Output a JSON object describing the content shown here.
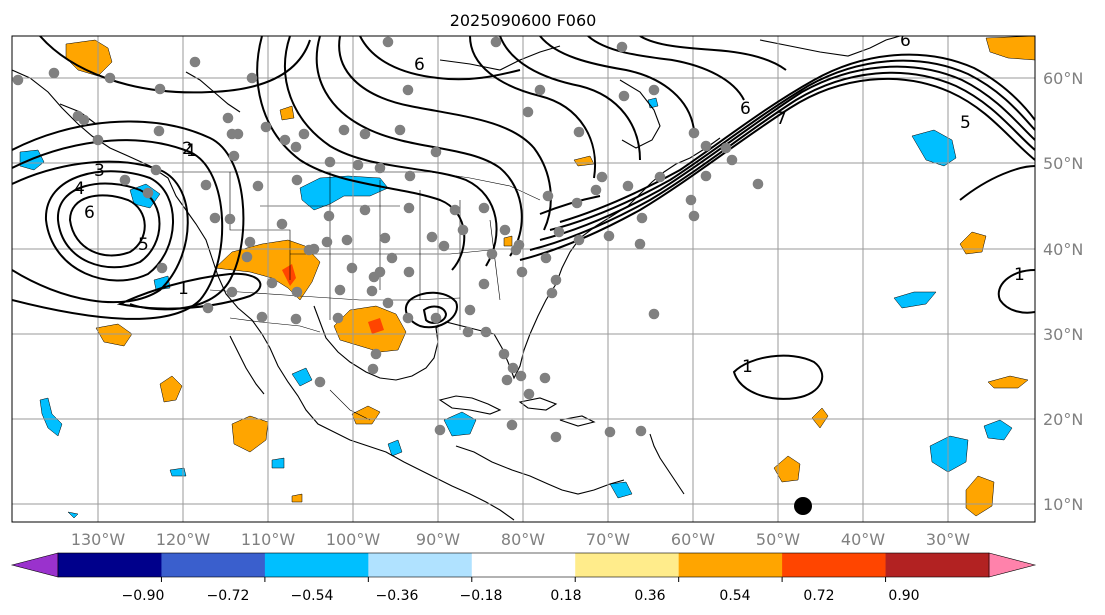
{
  "title": "2025090600 F060",
  "lat_ticks": [
    "10°N",
    "20°N",
    "30°N",
    "40°N",
    "50°N",
    "60°N"
  ],
  "lon_ticks": [
    "130°W",
    "120°W",
    "110°W",
    "100°W",
    "90°W",
    "80°W",
    "70°W",
    "60°W",
    "50°W",
    "40°W",
    "30°W"
  ],
  "colorbar": {
    "labels": [
      "−0.90",
      "−0.72",
      "−0.54",
      "−0.36",
      "−0.18",
      "0.18",
      "0.36",
      "0.54",
      "0.72",
      "0.90"
    ],
    "colors": [
      "#9a32cd",
      "#00008b",
      "#3a5fcd",
      "#00bfff",
      "#b0e2ff",
      "#ffffff",
      "#ffec8b",
      "#ffa500",
      "#ff4500",
      "#b22222",
      "#ff82ab"
    ]
  },
  "contour_labels": [
    "1",
    "2",
    "3",
    "4",
    "5",
    "6",
    "1",
    "1",
    "6",
    "7",
    "6",
    "6",
    "5",
    "1"
  ],
  "colors": {
    "gridline": "#9a9a9a",
    "station": "#808080",
    "marker": "#000000"
  }
}
